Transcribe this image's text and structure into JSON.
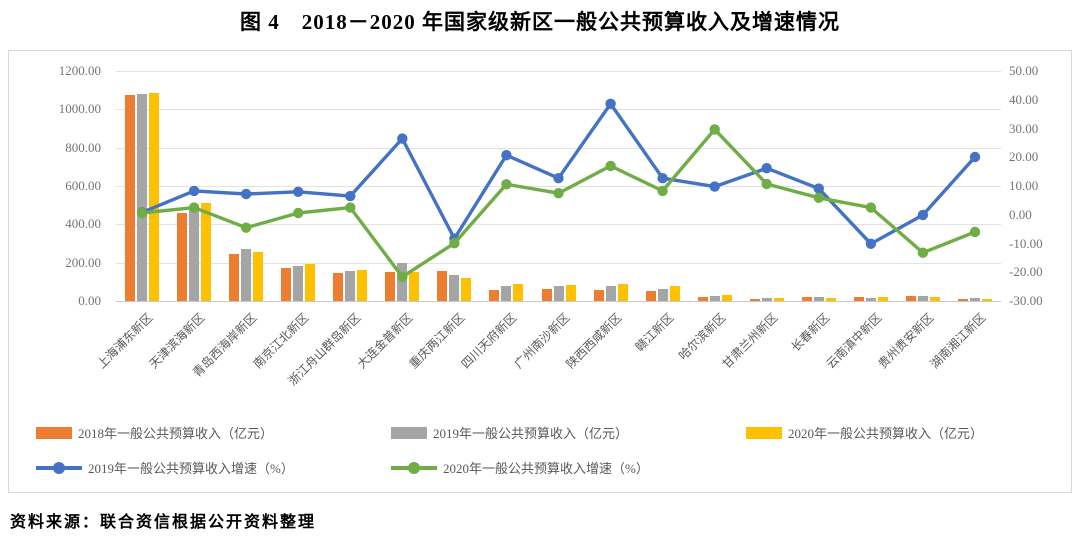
{
  "page": {
    "title": "图 4　2018－2020 年国家级新区一般公共预算收入及增速情况",
    "source": "资料来源：联合资信根据公开资料整理"
  },
  "colors": {
    "bar_2018": "#ED7D31",
    "bar_2019": "#A5A5A5",
    "bar_2020": "#FFC000",
    "line_2019": "#4472C4",
    "line_2020": "#70AD47",
    "grid": "#E2E2E2",
    "axis_text": "#757575",
    "label_text": "#595959",
    "frame_border": "#D9D9D9"
  },
  "chart_data": {
    "type": "combo-bar-line",
    "title": "图 4　2018－2020 年国家级新区一般公共预算收入及增速情况",
    "grid": true,
    "legend_position": "bottom",
    "categories": [
      "上海浦东新区",
      "天津滨海新区",
      "青岛西海岸新区",
      "南京江北新区",
      "浙江舟山群岛新区",
      "大连金普新区",
      "重庆两江新区",
      "四川天府新区",
      "广州南沙新区",
      "陕西西咸新区",
      "赣江新区",
      "哈尔滨新区",
      "甘肃兰州新区",
      "长春新区",
      "云南滇中新区",
      "贵州贵安新区",
      "湖南湘江新区"
    ],
    "series": [
      {
        "name": "2018年一般公共预算收入（亿元）",
        "type": "bar",
        "axis": "left",
        "color_key": "bar_2018",
        "values": [
          1075,
          460,
          247,
          170,
          145,
          152,
          155,
          55,
          65,
          58,
          50,
          20,
          12,
          23,
          19,
          28,
          8
        ]
      },
      {
        "name": "2019年一般公共预算收入（亿元）",
        "type": "bar",
        "axis": "left",
        "color_key": "bar_2019",
        "values": [
          1081,
          490,
          270,
          185,
          155,
          198,
          137,
          76,
          79,
          79,
          62,
          27,
          17,
          23,
          16,
          28,
          14
        ]
      },
      {
        "name": "2020年一般公共预算收入（亿元）",
        "type": "bar",
        "axis": "left",
        "color_key": "bar_2020",
        "values": [
          1086,
          513,
          254,
          195,
          163,
          150,
          121,
          90,
          85,
          90,
          76,
          32,
          17,
          16,
          19,
          19,
          10
        ]
      },
      {
        "name": "2019年一般公共预算收入增速（%）",
        "type": "line",
        "axis": "right",
        "color_key": "line_2019",
        "values": [
          0.8,
          8.3,
          7.2,
          8.0,
          6.5,
          26.5,
          -8.3,
          20.7,
          12.7,
          38.6,
          12.7,
          9.8,
          16.2,
          9.1,
          -10.1,
          -0.1,
          20.1
        ]
      },
      {
        "name": "2020年一般公共预算收入增速（%）",
        "type": "line",
        "axis": "right",
        "color_key": "line_2020",
        "values": [
          0.6,
          2.5,
          -4.5,
          0.6,
          2.5,
          -21.6,
          -9.9,
          10.6,
          7.5,
          17.0,
          8.3,
          29.7,
          10.7,
          5.9,
          2.5,
          -13.2,
          -6.0
        ]
      }
    ],
    "left_axis": {
      "min": 0,
      "max": 1200,
      "step": 200,
      "tick_labels": [
        "1200.00",
        "1000.00",
        "800.00",
        "600.00",
        "400.00",
        "200.00",
        "0.00"
      ]
    },
    "right_axis": {
      "min": -30,
      "max": 50,
      "step": 10,
      "tick_labels": [
        "50.00",
        "40.00",
        "30.00",
        "20.00",
        "10.00",
        "0.00",
        "-10.00",
        "-20.00",
        "-30.00"
      ]
    }
  }
}
